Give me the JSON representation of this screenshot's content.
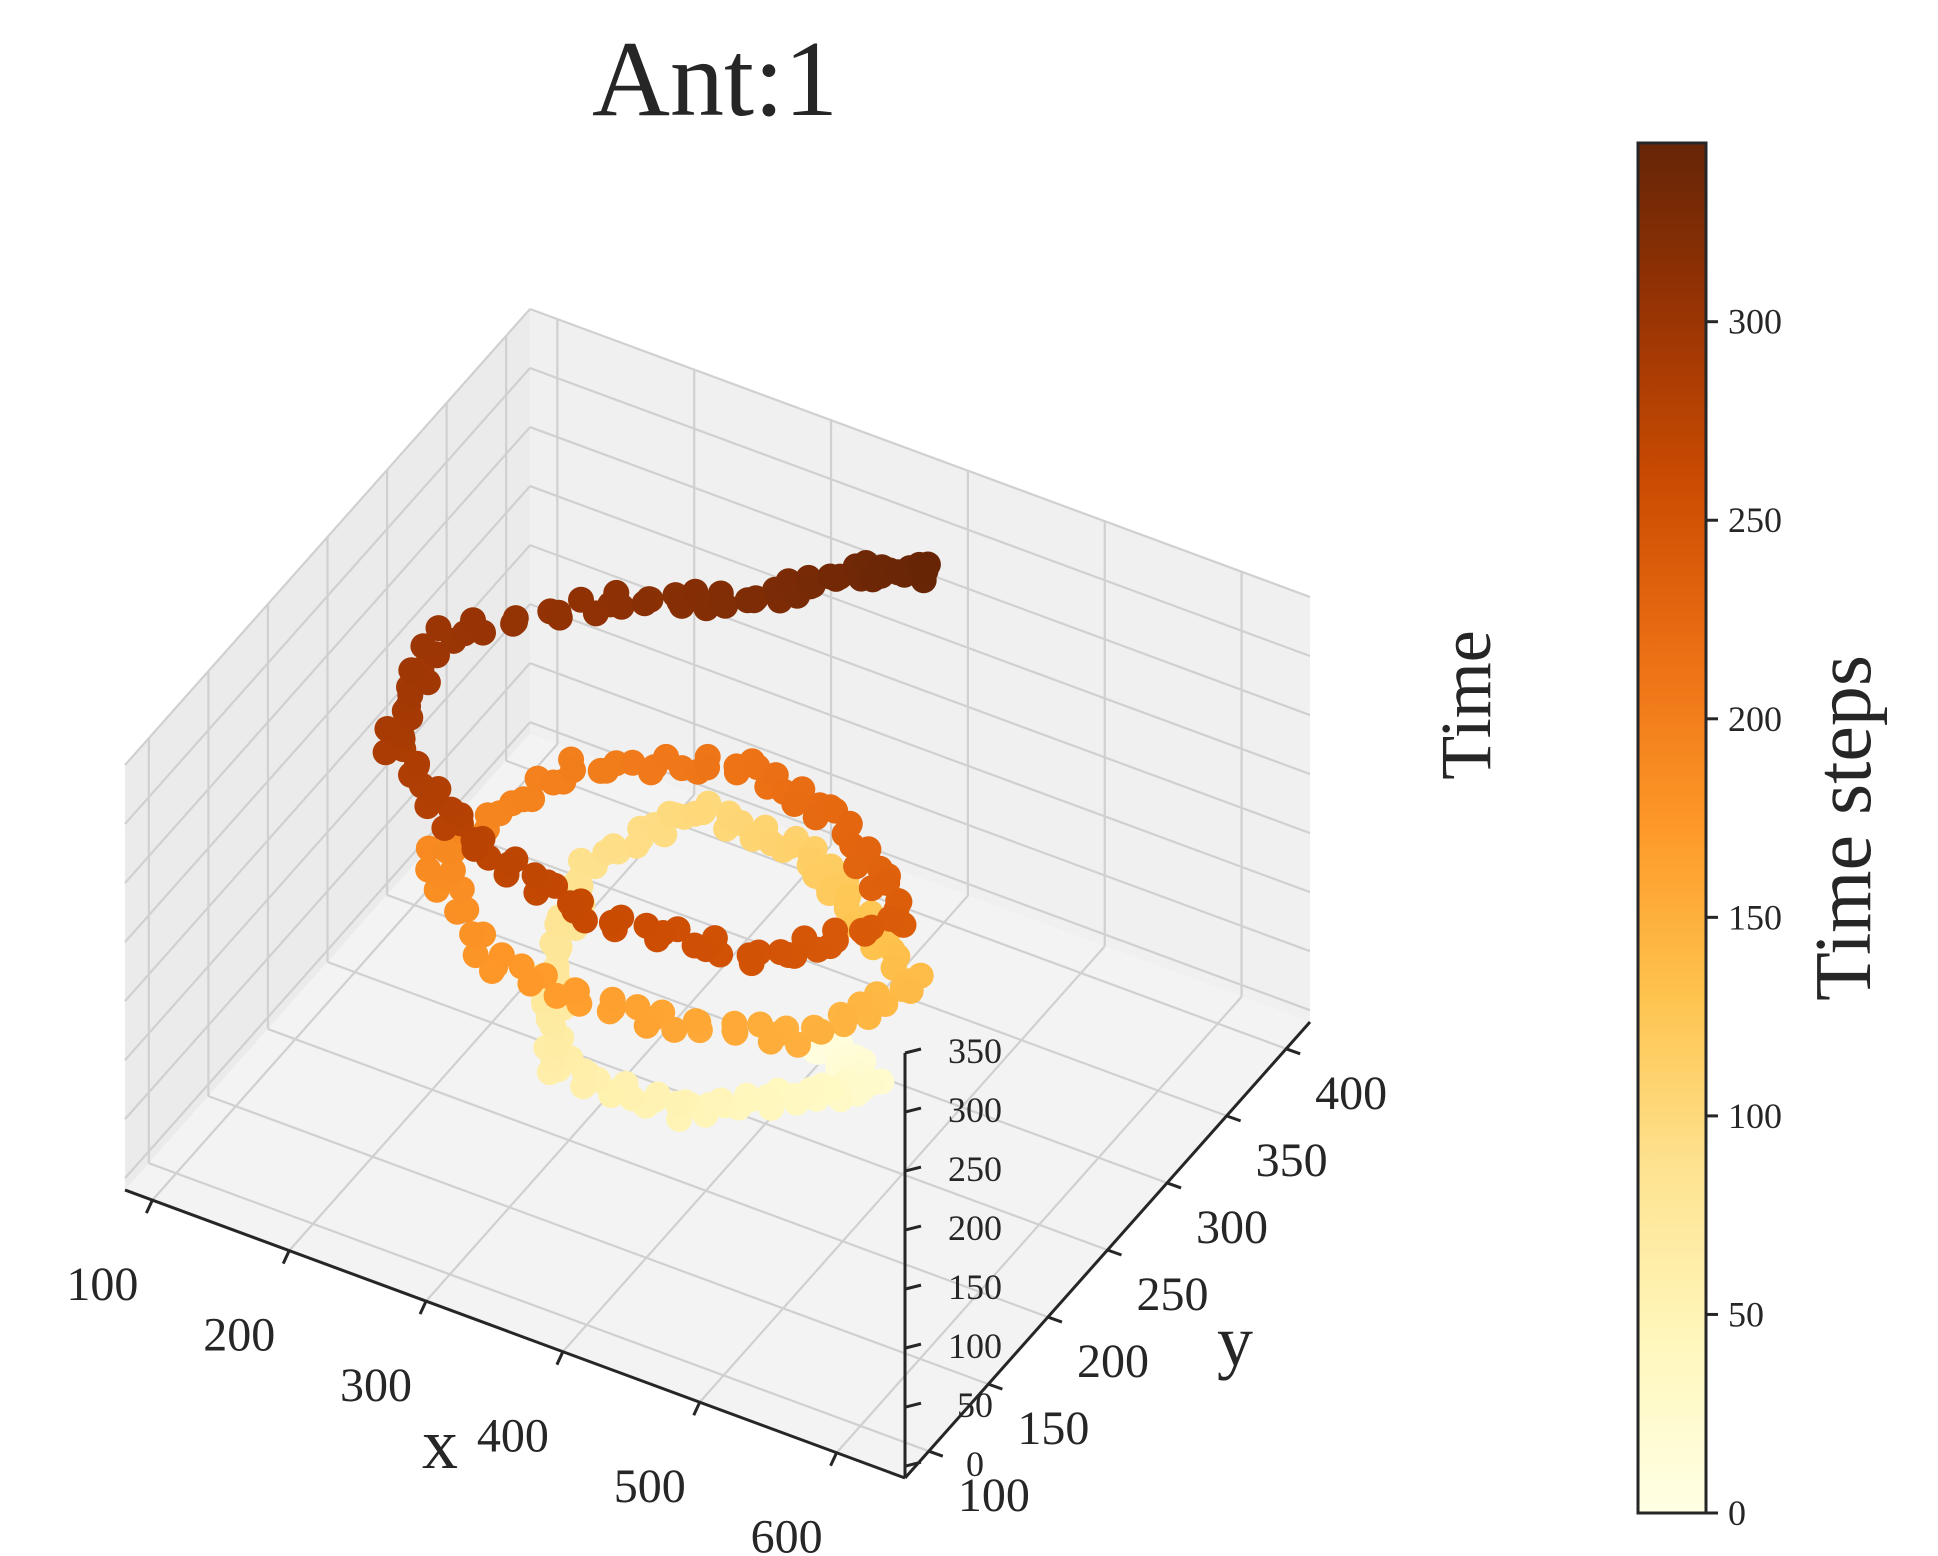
{
  "chart_data": {
    "type": "scatter",
    "projection": "3d",
    "title": "Ant:1",
    "xlabel": "x",
    "ylabel": "y",
    "zlabel": "Time",
    "xlim": [
      80,
      650
    ],
    "ylim": [
      80,
      420
    ],
    "zlim": [
      -10,
      350
    ],
    "x_ticks": [
      "100",
      "200",
      "300",
      "400",
      "500",
      "600"
    ],
    "y_ticks": [
      "100",
      "150",
      "200",
      "250",
      "300",
      "350",
      "400"
    ],
    "z_ticks": [
      "0",
      "50",
      "100",
      "150",
      "200",
      "250",
      "300",
      "350"
    ],
    "grid": true,
    "colormap": "YlOrBr",
    "colormap_stops": [
      "#ffffe5",
      "#fff7bc",
      "#fee391",
      "#fec44f",
      "#fe9929",
      "#ec7014",
      "#cc4c02",
      "#993404",
      "#662506"
    ],
    "colorbar": {
      "label": "Time steps",
      "ticks": [
        "0",
        "50",
        "100",
        "150",
        "200",
        "250",
        "300"
      ],
      "range": [
        0,
        345
      ],
      "placement": "right"
    },
    "series": [
      {
        "marker": "circle",
        "points": [
          {
            "x": 390,
            "y": 300,
            "t": 0
          },
          {
            "x": 420,
            "y": 290,
            "t": 12
          },
          {
            "x": 460,
            "y": 270,
            "t": 25
          },
          {
            "x": 430,
            "y": 240,
            "t": 38
          },
          {
            "x": 380,
            "y": 200,
            "t": 50
          },
          {
            "x": 300,
            "y": 190,
            "t": 62
          },
          {
            "x": 260,
            "y": 230,
            "t": 75
          },
          {
            "x": 230,
            "y": 290,
            "t": 88
          },
          {
            "x": 270,
            "y": 340,
            "t": 100
          },
          {
            "x": 360,
            "y": 330,
            "t": 112
          },
          {
            "x": 420,
            "y": 300,
            "t": 125
          },
          {
            "x": 500,
            "y": 260,
            "t": 138
          },
          {
            "x": 470,
            "y": 200,
            "t": 150
          },
          {
            "x": 380,
            "y": 170,
            "t": 162
          },
          {
            "x": 280,
            "y": 160,
            "t": 175
          },
          {
            "x": 200,
            "y": 200,
            "t": 188
          },
          {
            "x": 240,
            "y": 270,
            "t": 200
          },
          {
            "x": 340,
            "y": 300,
            "t": 212
          },
          {
            "x": 430,
            "y": 280,
            "t": 225
          },
          {
            "x": 520,
            "y": 230,
            "t": 238
          },
          {
            "x": 470,
            "y": 170,
            "t": 250
          },
          {
            "x": 360,
            "y": 150,
            "t": 262
          },
          {
            "x": 260,
            "y": 160,
            "t": 275
          },
          {
            "x": 180,
            "y": 190,
            "t": 288
          },
          {
            "x": 160,
            "y": 250,
            "t": 300
          },
          {
            "x": 250,
            "y": 300,
            "t": 312
          },
          {
            "x": 330,
            "y": 320,
            "t": 324
          },
          {
            "x": 380,
            "y": 350,
            "t": 336
          },
          {
            "x": 430,
            "y": 360,
            "t": 345
          }
        ]
      }
    ]
  }
}
